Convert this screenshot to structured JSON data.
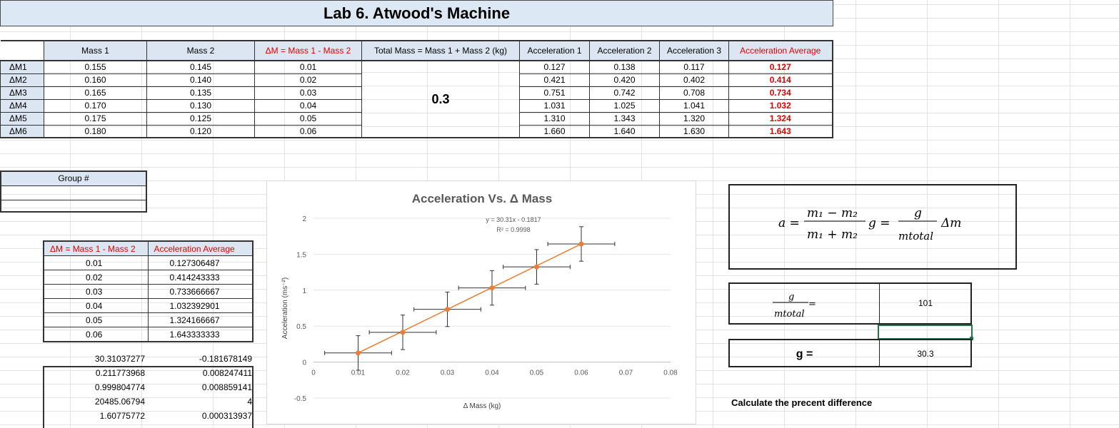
{
  "title": "Lab 6. Atwood's Machine",
  "data_table": {
    "headers": [
      "Mass 1",
      "Mass 2",
      "ΔM = Mass 1 - Mass 2",
      "Total Mass = Mass 1 + Mass 2 (kg)",
      "Acceleration 1",
      "Acceleration 2",
      "Acceleration 3",
      "Acceleration Average"
    ],
    "total_mass": "0.3",
    "rows": [
      {
        "label": "ΔM1",
        "m1": "0.155",
        "m2": "0.145",
        "dm": "0.01",
        "a1": "0.127",
        "a2": "0.138",
        "a3": "0.117",
        "avg": "0.127"
      },
      {
        "label": "ΔM2",
        "m1": "0.160",
        "m2": "0.140",
        "dm": "0.02",
        "a1": "0.421",
        "a2": "0.420",
        "a3": "0.402",
        "avg": "0.414"
      },
      {
        "label": "ΔM3",
        "m1": "0.165",
        "m2": "0.135",
        "dm": "0.03",
        "a1": "0.751",
        "a2": "0.742",
        "a3": "0.708",
        "avg": "0.734"
      },
      {
        "label": "ΔM4",
        "m1": "0.170",
        "m2": "0.130",
        "dm": "0.04",
        "a1": "1.031",
        "a2": "1.025",
        "a3": "1.041",
        "avg": "1.032"
      },
      {
        "label": "ΔM5",
        "m1": "0.175",
        "m2": "0.125",
        "dm": "0.05",
        "a1": "1.310",
        "a2": "1.343",
        "a3": "1.320",
        "avg": "1.324"
      },
      {
        "label": "ΔM6",
        "m1": "0.180",
        "m2": "0.120",
        "dm": "0.06",
        "a1": "1.660",
        "a2": "1.640",
        "a3": "1.630",
        "avg": "1.643"
      }
    ]
  },
  "group": {
    "label": "Group #"
  },
  "summary_table": {
    "headers": [
      "ΔM = Mass 1 - Mass 2",
      "Acceleration Average"
    ],
    "rows": [
      [
        "0.01",
        "0.127306487"
      ],
      [
        "0.02",
        "0.414243333"
      ],
      [
        "0.03",
        "0.733666667"
      ],
      [
        "0.04",
        "1.032392901"
      ],
      [
        "0.05",
        "1.324166667"
      ],
      [
        "0.06",
        "1.643333333"
      ]
    ]
  },
  "linest": [
    [
      "30.31037277",
      "-0.181678149"
    ],
    [
      "0.211773968",
      "0.008247411"
    ],
    [
      "0.999804774",
      "0.008859141"
    ],
    [
      "20485.06794",
      "4"
    ],
    [
      "1.60775772",
      "0.000313937"
    ]
  ],
  "results": {
    "g_over_mtotal_value": "101",
    "g_label": "g =",
    "g_value": "30.3"
  },
  "prompt_text": "Calculate the precent difference",
  "colors": {
    "series": "#ed7d31",
    "header_fill": "#dce6f2",
    "title_fill": "#dde8f5",
    "red": "#e00000",
    "selected": "#217346"
  },
  "chart_data": {
    "type": "scatter",
    "title": "Acceleration Vs. Δ Mass",
    "xlabel": "Δ Mass (kg)",
    "ylabel": "Acceleration (ms⁻²)",
    "xlim": [
      0,
      0.08
    ],
    "ylim": [
      -0.5,
      2
    ],
    "x_ticks": [
      "0",
      "0.01",
      "0.02",
      "0.03",
      "0.04",
      "0.05",
      "0.06",
      "0.07",
      "0.08"
    ],
    "y_ticks": [
      "-0.5",
      "0",
      "0.5",
      "1",
      "1.5",
      "2"
    ],
    "trendline_label": "y = 30.31x - 0.1817",
    "r2_label": "R² = 0.9998",
    "x": [
      0.01,
      0.02,
      0.03,
      0.04,
      0.05,
      0.06
    ],
    "y": [
      0.127,
      0.414,
      0.734,
      1.032,
      1.324,
      1.643
    ],
    "x_error": 0.0075,
    "y_error": 0.24,
    "grid": "horizontal"
  }
}
